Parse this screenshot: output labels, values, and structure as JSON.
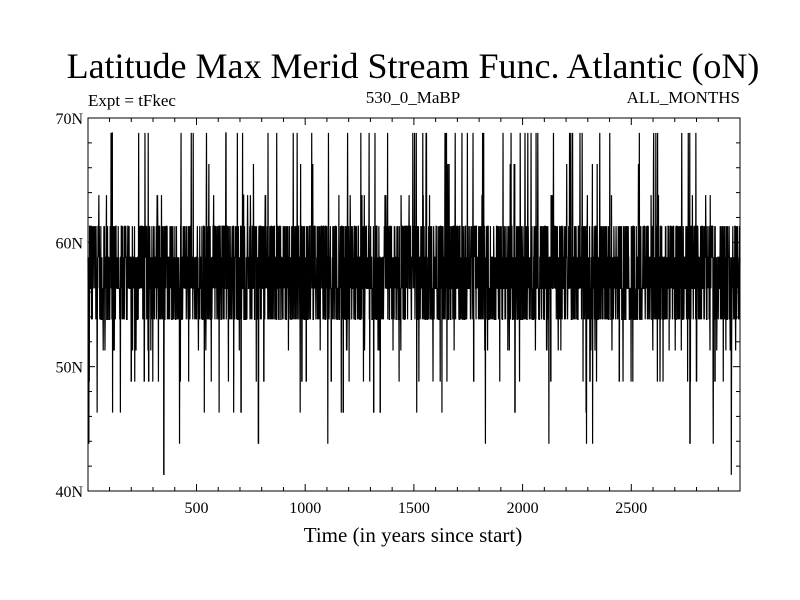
{
  "chart_data": {
    "type": "line",
    "title": "Latitude Max Merid Stream Func. Atlantic (oN)",
    "subtitle_left": "Expt = tFkec",
    "subtitle_center": "530_0_MaBP",
    "subtitle_right": "ALL_MONTHS",
    "xlabel": "Time (in years since start)",
    "ylabel": "",
    "xlim": [
      1,
      3000
    ],
    "ylim": [
      40,
      70
    ],
    "x_ticks": [
      500,
      1000,
      1500,
      2000,
      2500
    ],
    "y_ticks": [
      40,
      50,
      60,
      70
    ],
    "y_tick_labels": [
      "40N",
      "50N",
      "60N",
      "70N"
    ],
    "grid": false,
    "color": "#000000",
    "levels": [
      41.3,
      43.8,
      46.3,
      48.8,
      51.3,
      53.8,
      56.3,
      58.8,
      61.3,
      63.8,
      66.3,
      68.8
    ],
    "level_weights": [
      1,
      2,
      4,
      10,
      18,
      260,
      340,
      300,
      250,
      14,
      8,
      28
    ],
    "n_points": 3000,
    "notable_minima": [
      {
        "x": 350,
        "y": 41.3
      },
      {
        "x": 785,
        "y": 43.8
      },
      {
        "x": 2770,
        "y": 43.8
      },
      {
        "x": 705,
        "y": 46.3
      },
      {
        "x": 1175,
        "y": 46.3
      },
      {
        "x": 1315,
        "y": 46.3
      },
      {
        "x": 1345,
        "y": 46.3
      },
      {
        "x": 1965,
        "y": 46.3
      },
      {
        "x": 200,
        "y": 48.8
      },
      {
        "x": 260,
        "y": 48.8
      },
      {
        "x": 280,
        "y": 48.8
      },
      {
        "x": 810,
        "y": 48.8
      },
      {
        "x": 985,
        "y": 48.8
      },
      {
        "x": 1005,
        "y": 48.8
      },
      {
        "x": 1120,
        "y": 48.8
      },
      {
        "x": 1775,
        "y": 48.8
      },
      {
        "x": 2130,
        "y": 48.8
      },
      {
        "x": 2310,
        "y": 48.8
      },
      {
        "x": 2445,
        "y": 48.8
      },
      {
        "x": 2800,
        "y": 48.8
      },
      {
        "x": 2885,
        "y": 48.8
      }
    ]
  }
}
